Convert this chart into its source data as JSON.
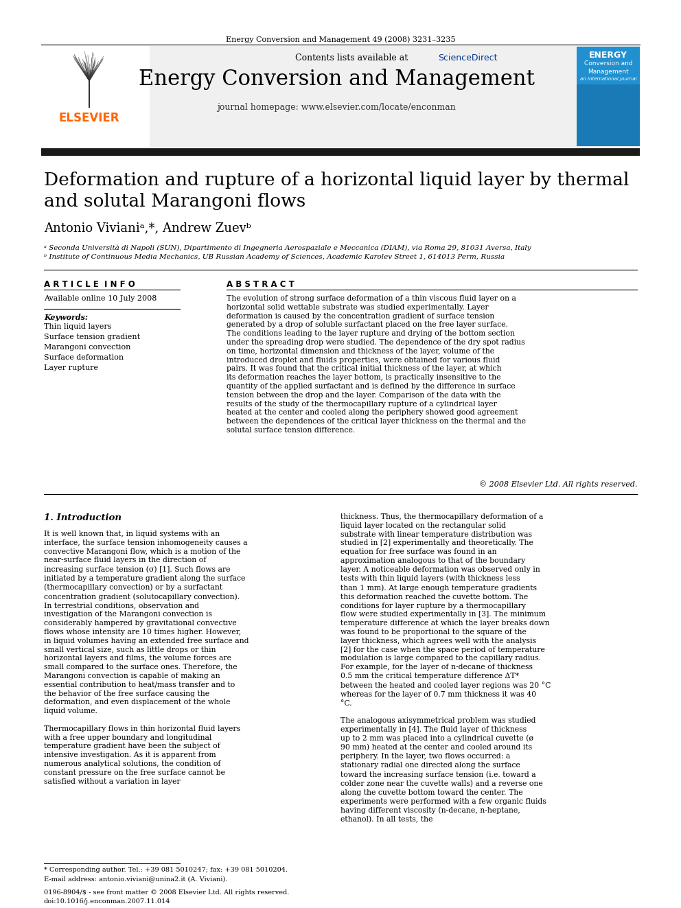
{
  "journal_citation": "Energy Conversion and Management 49 (2008) 3231–3235",
  "contents_line": "Contents lists available at ScienceDirect",
  "sciencedirect_color": "#003399",
  "journal_title": "Energy Conversion and Management",
  "journal_homepage": "journal homepage: www.elsevier.com/locate/enconman",
  "elsevier_color": "#FF6600",
  "elsevier_text": "ELSEVIER",
  "paper_title": "Deformation and rupture of a horizontal liquid layer by thermal\nand solutal Marangoni flows",
  "authors": "Antonio Vivianiᵃ,*, Andrew Zuevᵇ",
  "affil_a": "ᵃ Seconda Università di Napoli (SUN), Dipartimento di Ingegneria Aerospaziale e Meccanica (DIAM), via Roma 29, 81031 Aversa, Italy",
  "affil_b": "ᵇ Institute of Continuous Media Mechanics, UB Russian Academy of Sciences, Academic Karolev Street 1, 614013 Perm, Russia",
  "article_info_header": "A R T I C L E  I N F O",
  "available_online": "Available online 10 July 2008",
  "keywords_header": "Keywords:",
  "keywords": [
    "Thin liquid layers",
    "Surface tension gradient",
    "Marangoni convection",
    "Surface deformation",
    "Layer rupture"
  ],
  "abstract_header": "A B S T R A C T",
  "abstract_text": "The evolution of strong surface deformation of a thin viscous fluid layer on a horizontal solid wettable substrate was studied experimentally. Layer deformation is caused by the concentration gradient of surface tension generated by a drop of soluble surfactant placed on the free layer surface. The conditions leading to the layer rupture and drying of the bottom section under the spreading drop were studied. The dependence of the dry spot radius on time, horizontal dimension and thickness of the layer, volume of the introduced droplet and fluids properties, were obtained for various fluid pairs. It was found that the critical initial thickness of the layer, at which its deformation reaches the layer bottom, is practically insensitive to the quantity of the applied surfactant and is defined by the difference in surface tension between the drop and the layer. Comparison of the data with the results of the study of the thermocapillary rupture of a cylindrical layer heated at the center and cooled along the periphery showed good agreement between the dependences of the critical layer thickness on the thermal and the solutal surface tension difference.",
  "copyright_text": "© 2008 Elsevier Ltd. All rights reserved.",
  "section1_header": "1. Introduction",
  "intro_left": "It is well known that, in liquid systems with an interface, the surface tension inhomogeneity causes a convective Marangoni flow, which is a motion of the near-surface fluid layers in the direction of increasing surface tension (σ) [1]. Such flows are initiated by a temperature gradient along the surface (thermocapillary convection) or by a surfactant concentration gradient (solutocapillary convection). In terrestrial conditions, observation and investigation of the Marangoni convection is considerably hampered by gravitational convective flows whose intensity are 10 times higher. However, in liquid volumes having an extended free surface and small vertical size, such as little drops or thin horizontal layers and films, the volume forces are small compared to the surface ones. Therefore, the Marangoni convection is capable of making an essential contribution to heat/mass transfer and to the behavior of the free surface causing the deformation, and even displacement of the whole liquid volume.\n\nThermocapillary flows in thin horizontal fluid layers with a free upper boundary and longitudinal temperature gradient have been the subject of intensive investigation. As it is apparent from numerous analytical solutions, the condition of constant pressure on the free surface cannot be satisfied without a variation in layer",
  "intro_right": "thickness. Thus, the thermocapillary deformation of a liquid layer located on the rectangular solid substrate with linear temperature distribution was studied in [2] experimentally and theoretically. The equation for free surface was found in an approximation analogous to that of the boundary layer. A noticeable deformation was observed only in tests with thin liquid layers (with thickness less than 1 mm). At large enough temperature gradients this deformation reached the cuvette bottom. The conditions for layer rupture by a thermocapillary flow were studied experimentally in [3]. The minimum temperature difference at which the layer breaks down was found to be proportional to the square of the layer thickness, which agrees well with the analysis [2] for the case when the space period of temperature modulation is large compared to the capillary radius. For example, for the layer of n-decane of thickness 0.5 mm the critical temperature difference ΔT* between the heated and cooled layer regions was 20 °C whereas for the layer of 0.7 mm thickness it was 40 °C.\n\nThe analogous axisymmetrical problem was studied experimentally in [4]. The fluid layer of thickness up to 2 mm was placed into a cylindrical cuvette (ø 90 mm) heated at the center and cooled around its periphery. In the layer, two flows occurred: a stationary radial one directed along the surface toward the increasing surface tension (i.e. toward a colder zone near the cuvette walls) and a reverse one along the cuvette bottom toward the center. The experiments were performed with a few organic fluids having different viscosity (n-decane, n-heptane, ethanol). In all tests, the",
  "footnote_star": "* Corresponding author. Tel.: +39 081 5010247; fax: +39 081 5010204.",
  "footnote_email": "E-mail address: antonio.viviani@unina2.it (A. Viviani).",
  "footer_issn": "0196-8904/$ - see front matter © 2008 Elsevier Ltd. All rights reserved.",
  "footer_doi": "doi:10.1016/j.enconman.2007.11.014",
  "header_bg": "#f0f0f0",
  "thick_bar_color": "#1a1a1a",
  "thin_line_color": "#000000"
}
